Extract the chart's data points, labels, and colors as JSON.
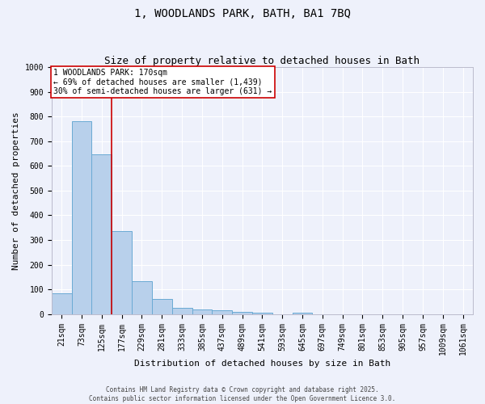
{
  "title1": "1, WOODLANDS PARK, BATH, BA1 7BQ",
  "title2": "Size of property relative to detached houses in Bath",
  "xlabel": "Distribution of detached houses by size in Bath",
  "ylabel": "Number of detached properties",
  "categories": [
    "21sqm",
    "73sqm",
    "125sqm",
    "177sqm",
    "229sqm",
    "281sqm",
    "333sqm",
    "385sqm",
    "437sqm",
    "489sqm",
    "541sqm",
    "593sqm",
    "645sqm",
    "697sqm",
    "749sqm",
    "801sqm",
    "853sqm",
    "905sqm",
    "957sqm",
    "1009sqm",
    "1061sqm"
  ],
  "values": [
    83,
    780,
    648,
    335,
    133,
    60,
    25,
    18,
    14,
    8,
    5,
    0,
    6,
    0,
    0,
    0,
    0,
    0,
    0,
    0,
    0
  ],
  "bar_color": "#b8d0eb",
  "bar_edge_color": "#6aaad4",
  "vline_color": "#cc0000",
  "vline_pos": 2.5,
  "annotation_text": "1 WOODLANDS PARK: 170sqm\n← 69% of detached houses are smaller (1,439)\n30% of semi-detached houses are larger (631) →",
  "annotation_box_color": "#ffffff",
  "annotation_box_edge": "#cc0000",
  "ylim": [
    0,
    1000
  ],
  "yticks": [
    0,
    100,
    200,
    300,
    400,
    500,
    600,
    700,
    800,
    900,
    1000
  ],
  "background_color": "#eef1fb",
  "grid_color": "#ffffff",
  "footer_line1": "Contains HM Land Registry data © Crown copyright and database right 2025.",
  "footer_line2": "Contains public sector information licensed under the Open Government Licence 3.0.",
  "title_fontsize": 10,
  "subtitle_fontsize": 9,
  "tick_fontsize": 7,
  "label_fontsize": 8,
  "ann_fontsize": 7
}
